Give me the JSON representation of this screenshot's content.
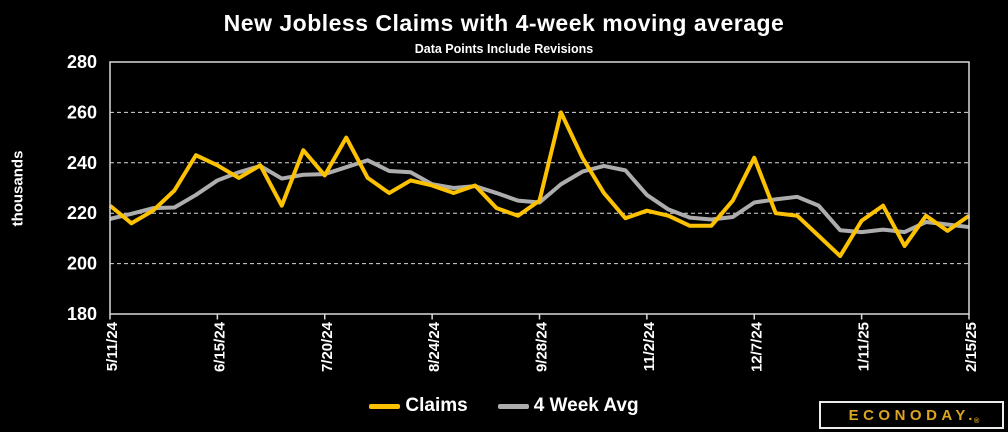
{
  "header": {
    "title": "New Jobless Claims with 4-week moving average",
    "subtitle": "Data Points Include Revisions"
  },
  "y_axis_title": "thousands",
  "legend": {
    "items": [
      {
        "label": "Claims",
        "color": "#FCC201"
      },
      {
        "label": "4 Week Avg",
        "color": "#ADADAD"
      }
    ]
  },
  "branding": {
    "logo_text": "ECONODAY.",
    "registered": "®",
    "color": "#DBA522"
  },
  "colors": {
    "background": "#000000",
    "text": "#FFFFFF",
    "grid": "#D9D9D9",
    "border": "#D9D9D9"
  },
  "chart_data": {
    "type": "line",
    "title": "New Jobless Claims with 4-week moving average",
    "subtitle": "Data Points Include Revisions",
    "xlabel": "",
    "ylabel": "thousands",
    "ylim": [
      180,
      280
    ],
    "y_ticks": [
      180,
      200,
      220,
      240,
      260,
      280
    ],
    "grid": "horizontal-dashed",
    "legend_position": "bottom",
    "x": [
      "5/11/24",
      "5/18/24",
      "5/25/24",
      "6/1/24",
      "6/8/24",
      "6/15/24",
      "6/22/24",
      "6/29/24",
      "7/6/24",
      "7/13/24",
      "7/20/24",
      "7/27/24",
      "8/3/24",
      "8/10/24",
      "8/17/24",
      "8/24/24",
      "8/31/24",
      "9/7/24",
      "9/14/24",
      "9/21/24",
      "9/28/24",
      "10/5/24",
      "10/12/24",
      "10/19/24",
      "10/26/24",
      "11/2/24",
      "11/9/24",
      "11/16/24",
      "11/23/24",
      "11/30/24",
      "12/7/24",
      "12/14/24",
      "12/21/24",
      "12/28/24",
      "1/4/25",
      "1/11/25",
      "1/18/25",
      "1/25/25",
      "2/1/25",
      "2/8/25",
      "2/15/25"
    ],
    "x_tick_indices": [
      0,
      5,
      10,
      15,
      20,
      25,
      30,
      35,
      40
    ],
    "x_tick_labels": [
      "5/11/24",
      "6/15/24",
      "7/20/24",
      "8/24/24",
      "9/28/24",
      "11/2/24",
      "12/7/24",
      "1/11/25",
      "2/15/25"
    ],
    "series": [
      {
        "name": "Claims",
        "color": "#FCC201",
        "values": [
          223,
          216,
          221,
          229,
          243,
          239,
          234,
          239,
          223,
          245,
          235,
          250,
          234,
          228,
          233,
          231,
          228,
          231,
          222,
          219,
          225,
          260,
          242,
          228,
          218,
          221,
          219,
          215,
          215,
          225,
          242,
          220,
          219,
          211,
          203,
          217,
          223,
          207,
          219,
          213,
          219
        ]
      },
      {
        "name": "4 Week Avg",
        "color": "#ADADAD",
        "values": [
          217.75,
          219.75,
          222,
          222.25,
          227.25,
          233,
          236.25,
          238.75,
          233.75,
          235.25,
          235.5,
          238.25,
          241,
          236.75,
          236.25,
          231.5,
          230,
          230.75,
          228,
          225,
          224.25,
          231.5,
          236.5,
          238.75,
          237,
          227.25,
          221.5,
          218.25,
          217.5,
          218.5,
          224.25,
          225.5,
          226.5,
          223,
          213.25,
          212.5,
          213.5,
          212.5,
          216.5,
          215.5,
          214.5
        ]
      }
    ]
  }
}
